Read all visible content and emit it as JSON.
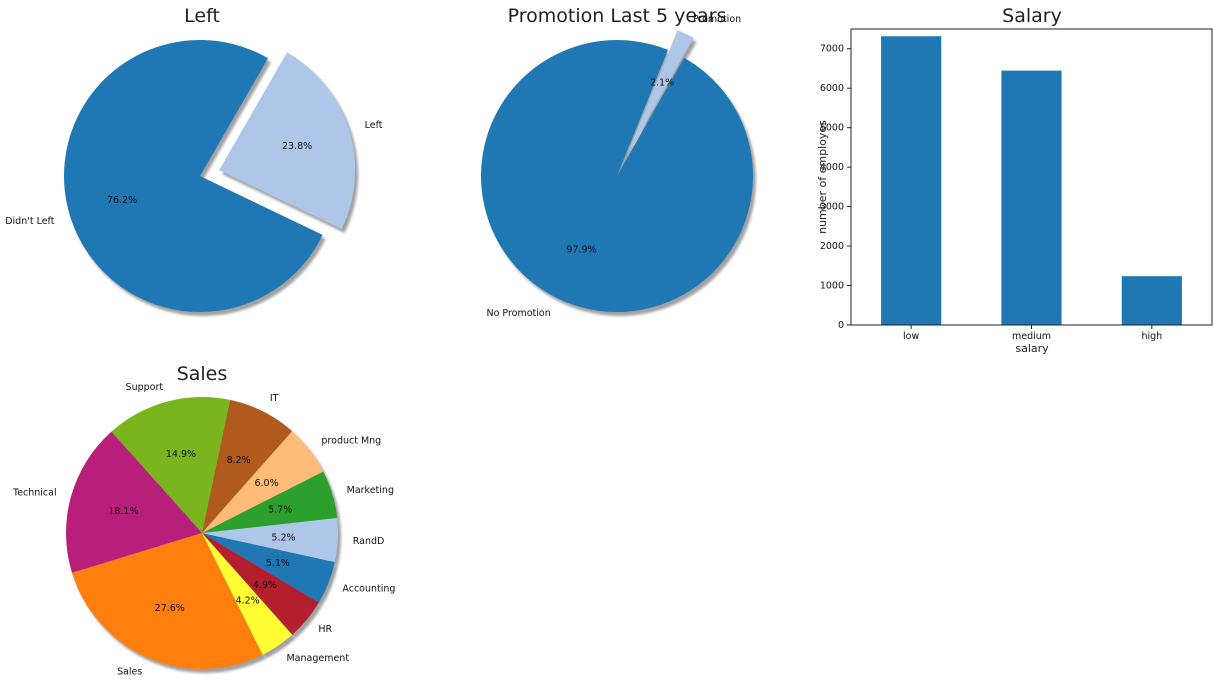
{
  "chart_data": [
    {
      "type": "pie",
      "title": "Left",
      "labels": [
        "Didn't Left",
        "Left"
      ],
      "values": [
        76.2,
        23.8
      ],
      "pct_labels": [
        "76.2%",
        "23.8%"
      ],
      "colors": [
        "#1f77b4",
        "#aec7e8"
      ],
      "explode": [
        0,
        1
      ],
      "shadow": true
    },
    {
      "type": "pie",
      "title": "Promotion Last 5 years",
      "labels": [
        "No Promotion",
        "Promotion"
      ],
      "values": [
        97.9,
        2.1
      ],
      "pct_labels": [
        "97.9%",
        "2.1%"
      ],
      "colors": [
        "#1f77b4",
        "#aec7e8"
      ],
      "explode": [
        0,
        1
      ],
      "shadow": true
    },
    {
      "type": "bar",
      "title": "Salary",
      "categories": [
        "low",
        "medium",
        "high"
      ],
      "values": [
        7316,
        6446,
        1237
      ],
      "xlabel": "salary",
      "ylabel": "number of employes",
      "ylim": [
        0,
        7500
      ],
      "yticks": [
        0,
        1000,
        2000,
        3000,
        4000,
        5000,
        6000,
        7000
      ],
      "bar_color": "#1f77b4",
      "grid": false
    },
    {
      "type": "pie",
      "title": "Sales",
      "labels": [
        "Sales",
        "Management",
        "HR",
        "Accounting",
        "RandD",
        "Marketing",
        "product Mng",
        "IT",
        "Support",
        "Technical"
      ],
      "values": [
        27.6,
        4.2,
        4.9,
        5.1,
        5.2,
        5.7,
        6.0,
        8.2,
        14.9,
        18.1
      ],
      "pct_labels": [
        "27.6%",
        "4.2%",
        "4.9%",
        "5.1%",
        "5.2%",
        "5.7%",
        "6.0%",
        "8.2%",
        "14.9%",
        "18.1%"
      ],
      "colors": [
        "#ff7f0e",
        "#ffff33",
        "#b31f2e",
        "#1f77b4",
        "#aec7e8",
        "#2ca02c",
        "#ffbb78",
        "#b15a1e",
        "#7ab51d",
        "#b81f7a"
      ],
      "shadow": true
    }
  ]
}
